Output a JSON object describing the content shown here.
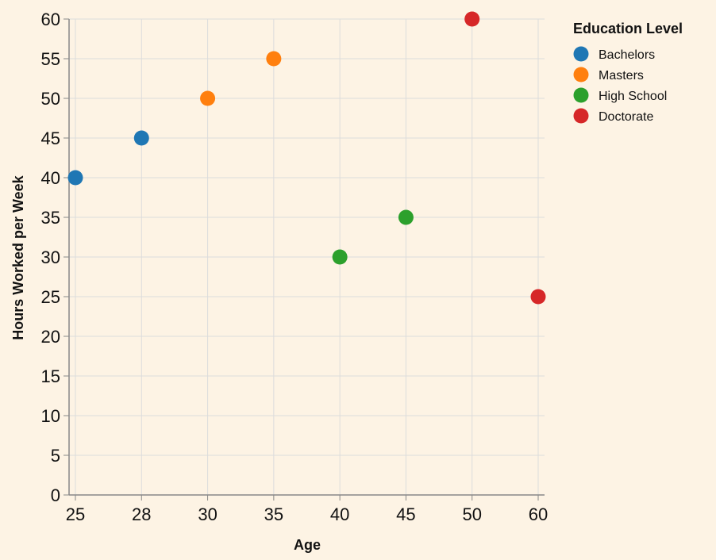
{
  "chart_data": {
    "type": "scatter",
    "xlabel": "Age",
    "ylabel": "Hours Worked per Week",
    "x_categories": [
      "25",
      "28",
      "30",
      "35",
      "40",
      "45",
      "50",
      "60"
    ],
    "x_scale": "ordinal (point)",
    "ylim": [
      0,
      60
    ],
    "y_ticks": [
      0,
      5,
      10,
      15,
      20,
      25,
      30,
      35,
      40,
      45,
      50,
      55,
      60
    ],
    "grid": true,
    "legend": {
      "title": "Education Level",
      "placement": "top-right",
      "entries": [
        {
          "label": "Bachelors",
          "color": "#1f77b4"
        },
        {
          "label": "Masters",
          "color": "#ff7f0e"
        },
        {
          "label": "High School",
          "color": "#2ca02c"
        },
        {
          "label": "Doctorate",
          "color": "#d62728"
        }
      ]
    },
    "series": [
      {
        "name": "Bachelors",
        "color": "#1f77b4",
        "points": [
          {
            "x": "25",
            "y": 40
          },
          {
            "x": "28",
            "y": 45
          }
        ]
      },
      {
        "name": "Masters",
        "color": "#ff7f0e",
        "points": [
          {
            "x": "30",
            "y": 50
          },
          {
            "x": "35",
            "y": 55
          }
        ]
      },
      {
        "name": "High School",
        "color": "#2ca02c",
        "points": [
          {
            "x": "40",
            "y": 30
          },
          {
            "x": "45",
            "y": 35
          }
        ]
      },
      {
        "name": "Doctorate",
        "color": "#d62728",
        "points": [
          {
            "x": "50",
            "y": 60
          },
          {
            "x": "60",
            "y": 25
          }
        ]
      }
    ]
  },
  "colors": {
    "background": "#fdf3e4",
    "grid": "#dcdcdc",
    "axis": "#888888"
  }
}
